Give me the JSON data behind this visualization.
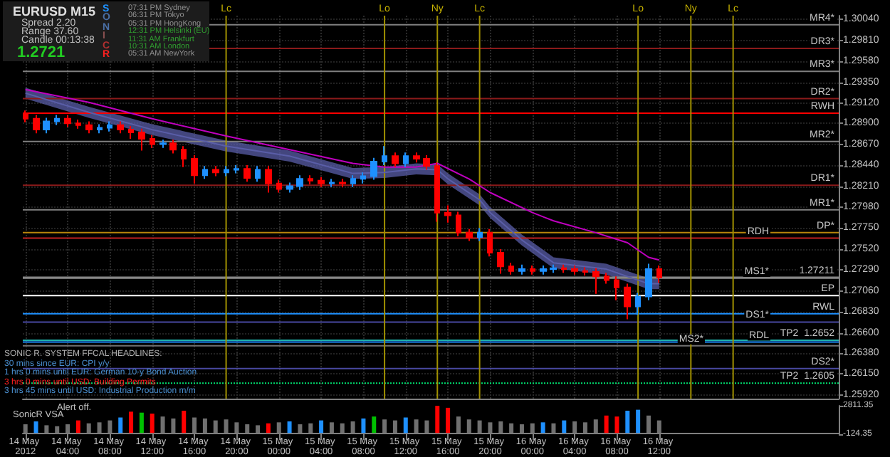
{
  "chart_data": [
    {
      "type": "candlestick",
      "title": "EURUSD  M15",
      "grid": true,
      "tick_labels": "y",
      "annotations": [
        "Spread  2.20",
        "Range  37.60",
        "Candle  00:13:38",
        "1.2721",
        "SONICR",
        "07:31 PM  Sydney",
        "06:31 PM  Tokyo",
        "05:31 PM  HongKong",
        "12:31 PM  Helsinki (EU)",
        "11:31 AM  Frankfurt",
        "10:31 AM  London",
        "05:31 AM  NewYork",
        "SONIC R. SYSTEM   FFCAL HEADLINES:",
        "30 mins since EUR: CPI y/y",
        "1 hrs 0 mins until EUR: German 10-y Bond Auction",
        "3 hrs 0 mins until USD: Building Permits",
        "3 hrs 45 mins until USD: Industrial Production m/m"
      ],
      "xlim": [
        "2012-05-13T23:45",
        "2012-05-17T05:00"
      ],
      "xticks": [
        {
          "value": "2012-05-14T00:00",
          "label": "14 May 2012"
        },
        {
          "value": "2012-05-14T04:00",
          "label": "14 May 04:00"
        },
        {
          "value": "2012-05-14T08:00",
          "label": "14 May 08:00"
        },
        {
          "value": "2012-05-14T12:00",
          "label": "14 May 12:00"
        },
        {
          "value": "2012-05-14T16:00",
          "label": "14 May 16:00"
        },
        {
          "value": "2012-05-14T20:00",
          "label": "14 May 20:00"
        },
        {
          "value": "2012-05-15T00:00",
          "label": "15 May 00:00"
        },
        {
          "value": "2012-05-15T04:00",
          "label": "15 May 04:00"
        },
        {
          "value": "2012-05-15T08:00",
          "label": "15 May 08:00"
        },
        {
          "value": "2012-05-15T12:00",
          "label": "15 May 12:00"
        },
        {
          "value": "2012-05-15T16:00",
          "label": "15 May 16:00"
        },
        {
          "value": "2012-05-15T20:00",
          "label": "15 May 20:00"
        },
        {
          "value": "2012-05-16T00:00",
          "label": "16 May 00:00"
        },
        {
          "value": "2012-05-16T04:00",
          "label": "16 May 04:00"
        },
        {
          "value": "2012-05-16T08:00",
          "label": "16 May 08:00"
        },
        {
          "value": "2012-05-16T12:00",
          "label": "16 May 12:00"
        }
      ],
      "ylim": [
        1.2588,
        1.3008
      ],
      "yticks": [
        {
          "value": 1.3004,
          "label": "1.30040"
        },
        {
          "value": 1.2981,
          "label": "1.29810"
        },
        {
          "value": 1.2958,
          "label": "1.29580"
        },
        {
          "value": 1.2935,
          "label": "1.29350"
        },
        {
          "value": 1.2912,
          "label": "1.29120"
        },
        {
          "value": 1.289,
          "label": "1.28900"
        },
        {
          "value": 1.2867,
          "label": "1.28670"
        },
        {
          "value": 1.2844,
          "label": "1.28440"
        },
        {
          "value": 1.2821,
          "label": "1.28210"
        },
        {
          "value": 1.2798,
          "label": "1.27980"
        },
        {
          "value": 1.2775,
          "label": "1.27750"
        },
        {
          "value": 1.2752,
          "label": "1.27520"
        },
        {
          "value": 1.2729,
          "label": "1.27290"
        },
        {
          "value": 1.2706,
          "label": "1.27060"
        },
        {
          "value": 1.2683,
          "label": "1.26830"
        },
        {
          "value": 1.266,
          "label": "1.26600"
        },
        {
          "value": 1.2638,
          "label": "1.26380"
        },
        {
          "value": 1.2615,
          "label": "1.26150"
        },
        {
          "value": 1.2592,
          "label": "1.25920"
        }
      ],
      "x": [
        "2012-05-14T00:00",
        "2012-05-14T01:00",
        "2012-05-14T02:00",
        "2012-05-14T03:00",
        "2012-05-14T04:00",
        "2012-05-14T05:00",
        "2012-05-14T06:00",
        "2012-05-14T07:00",
        "2012-05-14T08:00",
        "2012-05-14T09:00",
        "2012-05-14T10:00",
        "2012-05-14T11:00",
        "2012-05-14T12:00",
        "2012-05-14T13:00",
        "2012-05-14T14:00",
        "2012-05-14T15:00",
        "2012-05-14T16:00",
        "2012-05-14T17:00",
        "2012-05-14T18:00",
        "2012-05-14T19:00",
        "2012-05-14T20:00",
        "2012-05-14T21:00",
        "2012-05-14T22:00",
        "2012-05-14T23:00",
        "2012-05-15T00:00",
        "2012-05-15T01:00",
        "2012-05-15T02:00",
        "2012-05-15T03:00",
        "2012-05-15T04:00",
        "2012-05-15T05:00",
        "2012-05-15T06:00",
        "2012-05-15T07:00",
        "2012-05-15T08:00",
        "2012-05-15T09:00",
        "2012-05-15T10:00",
        "2012-05-15T11:00",
        "2012-05-15T12:00",
        "2012-05-15T13:00",
        "2012-05-15T14:00",
        "2012-05-15T15:00",
        "2012-05-15T16:00",
        "2012-05-15T17:00",
        "2012-05-15T18:00",
        "2012-05-15T19:00",
        "2012-05-15T20:00",
        "2012-05-15T21:00",
        "2012-05-15T22:00",
        "2012-05-15T23:00",
        "2012-05-16T00:00",
        "2012-05-16T01:00",
        "2012-05-16T02:00",
        "2012-05-16T03:00",
        "2012-05-16T04:00",
        "2012-05-16T05:00",
        "2012-05-16T06:00",
        "2012-05-16T07:00",
        "2012-05-16T08:00",
        "2012-05-16T09:00",
        "2012-05-16T10:00",
        "2012-05-16T11:00",
        "2012-05-16T12:00"
      ],
      "ohlc": [
        [
          1.29,
          1.2904,
          1.2891,
          1.2895
        ],
        [
          1.2895,
          1.2899,
          1.2879,
          1.2883
        ],
        [
          1.2883,
          1.2896,
          1.2879,
          1.2892
        ],
        [
          1.2892,
          1.2899,
          1.2888,
          1.2895
        ],
        [
          1.2895,
          1.2899,
          1.2886,
          1.289
        ],
        [
          1.289,
          1.2894,
          1.2884,
          1.2888
        ],
        [
          1.2888,
          1.2892,
          1.2879,
          1.2883
        ],
        [
          1.2883,
          1.2889,
          1.2879,
          1.2885
        ],
        [
          1.2885,
          1.2892,
          1.2881,
          1.2888
        ],
        [
          1.2888,
          1.2892,
          1.2879,
          1.2883
        ],
        [
          1.2883,
          1.2887,
          1.2873,
          1.288
        ],
        [
          1.288,
          1.2884,
          1.286,
          1.2873
        ],
        [
          1.2873,
          1.2877,
          1.2863,
          1.2867
        ],
        [
          1.2867,
          1.2872,
          1.2863,
          1.2868
        ],
        [
          1.2868,
          1.2872,
          1.2857,
          1.2861
        ],
        [
          1.2861,
          1.2865,
          1.2842,
          1.2851
        ],
        [
          1.2851,
          1.2855,
          1.2824,
          1.2833
        ],
        [
          1.2833,
          1.2843,
          1.2829,
          1.2839
        ],
        [
          1.2839,
          1.2843,
          1.2832,
          1.2836
        ],
        [
          1.2836,
          1.2843,
          1.2832,
          1.2839
        ],
        [
          1.2839,
          1.2844,
          1.2835,
          1.284
        ],
        [
          1.284,
          1.2844,
          1.2826,
          1.283
        ],
        [
          1.283,
          1.2843,
          1.2826,
          1.2839
        ],
        [
          1.2839,
          1.2843,
          1.2814,
          1.2824
        ],
        [
          1.2824,
          1.2828,
          1.2814,
          1.2818
        ],
        [
          1.2818,
          1.2825,
          1.2814,
          1.2821
        ],
        [
          1.2821,
          1.2833,
          1.2817,
          1.2829
        ],
        [
          1.2829,
          1.2833,
          1.2823,
          1.2827
        ],
        [
          1.2827,
          1.2831,
          1.282,
          1.2824
        ],
        [
          1.2824,
          1.2829,
          1.282,
          1.2825
        ],
        [
          1.2825,
          1.2829,
          1.282,
          1.2824
        ],
        [
          1.2824,
          1.2833,
          1.282,
          1.2829
        ],
        [
          1.2829,
          1.2836,
          1.2824,
          1.2832
        ],
        [
          1.2832,
          1.2852,
          1.2828,
          1.2848
        ],
        [
          1.2848,
          1.2865,
          1.2844,
          1.2854
        ],
        [
          1.2854,
          1.2858,
          1.2842,
          1.2846
        ],
        [
          1.2846,
          1.2858,
          1.2842,
          1.2854
        ],
        [
          1.2854,
          1.2858,
          1.2847,
          1.2851
        ],
        [
          1.2851,
          1.2855,
          1.2839,
          1.2843
        ],
        [
          1.2843,
          1.2847,
          1.2782,
          1.2792
        ],
        [
          1.2792,
          1.28,
          1.2781,
          1.2789
        ],
        [
          1.2789,
          1.2793,
          1.2766,
          1.277
        ],
        [
          1.277,
          1.2774,
          1.2761,
          1.2765
        ],
        [
          1.2765,
          1.2775,
          1.2761,
          1.277
        ],
        [
          1.277,
          1.2774,
          1.2744,
          1.2748
        ],
        [
          1.2748,
          1.2752,
          1.2725,
          1.2733
        ],
        [
          1.2733,
          1.2737,
          1.2724,
          1.2728
        ],
        [
          1.2728,
          1.2735,
          1.2724,
          1.273
        ],
        [
          1.273,
          1.2734,
          1.2724,
          1.2728
        ],
        [
          1.2728,
          1.2734,
          1.2724,
          1.273
        ],
        [
          1.273,
          1.2735,
          1.2726,
          1.2731
        ],
        [
          1.2731,
          1.2735,
          1.2726,
          1.273
        ],
        [
          1.273,
          1.2734,
          1.2724,
          1.2728
        ],
        [
          1.2728,
          1.2732,
          1.2723,
          1.2727
        ],
        [
          1.2727,
          1.2731,
          1.2703,
          1.2722
        ],
        [
          1.2722,
          1.2726,
          1.2714,
          1.2718
        ],
        [
          1.2718,
          1.2722,
          1.2696,
          1.271
        ],
        [
          1.271,
          1.2714,
          1.2675,
          1.2689
        ],
        [
          1.2689,
          1.2704,
          1.268,
          1.27
        ],
        [
          1.27,
          1.2736,
          1.2696,
          1.273
        ],
        [
          1.273,
          1.2734,
          1.2715,
          1.2721
        ]
      ],
      "colors": [
        "#ff0000",
        "#ff0000",
        "#1e90ff",
        "#1e90ff",
        "#ff0000",
        "#ff0000",
        "#ff0000",
        "#1e90ff",
        "#1e90ff",
        "#ff0000",
        "#ff0000",
        "#ff0000",
        "#ff0000",
        "#1e90ff",
        "#ff0000",
        "#ff0000",
        "#ff0000",
        "#1e90ff",
        "#ff0000",
        "#1e90ff",
        "#1e90ff",
        "#ff0000",
        "#1e90ff",
        "#ff0000",
        "#ff0000",
        "#1e90ff",
        "#1e90ff",
        "#ff0000",
        "#ff0000",
        "#1e90ff",
        "#ff0000",
        "#1e90ff",
        "#1e90ff",
        "#1e90ff",
        "#1e90ff",
        "#ff0000",
        "#1e90ff",
        "#ff0000",
        "#ff0000",
        "#ff0000",
        "#ff0000",
        "#ff0000",
        "#ff0000",
        "#1e90ff",
        "#ff0000",
        "#ff0000",
        "#ff0000",
        "#1e90ff",
        "#ff0000",
        "#1e90ff",
        "#1e90ff",
        "#ff0000",
        "#ff0000",
        "#ff0000",
        "#ff0000",
        "#ff0000",
        "#ff0000",
        "#ff0000",
        "#1e90ff",
        "#1e90ff",
        "#ff0000"
      ],
      "series": [
        {
          "type": "line",
          "color": "#c000c0",
          "x": [
            "2012-05-14T00:00",
            "2012-05-14T06:00",
            "2012-05-14T12:00",
            "2012-05-14T19:00",
            "2012-05-15T01:00",
            "2012-05-15T07:00",
            "2012-05-15T10:00",
            "2012-05-15T13:00",
            "2012-05-15T15:00",
            "2012-05-15T18:00",
            "2012-05-15T20:00",
            "2012-05-16T00:00",
            "2012-05-16T02:00",
            "2012-05-16T06:00",
            "2012-05-16T09:00",
            "2012-05-16T11:00",
            "2012-05-16T12:00"
          ],
          "values": [
            1.2927,
            1.2913,
            1.2895,
            1.2876,
            1.2861,
            1.2846,
            1.2842,
            1.2842,
            1.2846,
            1.2829,
            1.2814,
            1.2792,
            1.2783,
            1.277,
            1.2759,
            1.2743,
            1.274
          ]
        },
        {
          "type": "line",
          "color": "#5a5ea8",
          "x": [
            "2012-05-14T00:00",
            "2012-05-14T06:00",
            "2012-05-14T12:00",
            "2012-05-14T19:00",
            "2012-05-15T01:00",
            "2012-05-15T07:00",
            "2012-05-15T10:00",
            "2012-05-15T13:00",
            "2012-05-15T15:00",
            "2012-05-15T16:00",
            "2012-05-15T19:00",
            "2012-05-15T20:00",
            "2012-05-15T23:00",
            "2012-05-16T02:00",
            "2012-05-16T07:00",
            "2012-05-16T11:00",
            "2012-05-16T12:00"
          ],
          "values": [
            1.2923,
            1.2902,
            1.2883,
            1.2865,
            1.2854,
            1.2835,
            1.2836,
            1.284,
            1.2839,
            1.2829,
            1.2806,
            1.2792,
            1.2762,
            1.2737,
            1.273,
            1.2714,
            1.2714
          ],
          "lower": [
            1.2917,
            1.2896,
            1.2877,
            1.2859,
            1.2848,
            1.2829,
            1.283,
            1.2834,
            1.2833,
            1.2823,
            1.28,
            1.2786,
            1.2756,
            1.2731,
            1.2724,
            1.2708,
            1.2708
          ],
          "upper": [
            1.2929,
            1.2908,
            1.2889,
            1.2871,
            1.286,
            1.2841,
            1.2842,
            1.2846,
            1.2845,
            1.2835,
            1.2812,
            1.2798,
            1.2768,
            1.2743,
            1.2736,
            1.272,
            1.272
          ]
        }
      ],
      "ref_lines": [
        {
          "axis": "y",
          "value": 1.2998,
          "label": "MR4*",
          "color": "#808080"
        },
        {
          "axis": "y",
          "value": 1.2972,
          "label": "DR3*",
          "color": "#8b1a1a"
        },
        {
          "axis": "y",
          "value": 1.2947,
          "label": "MR3*",
          "color": "#808080"
        },
        {
          "axis": "y",
          "value": 1.2917,
          "label": "DR2*",
          "color": "#8b1a1a"
        },
        {
          "axis": "y",
          "value": 1.2901,
          "label": "RWH",
          "color": "#ff0000"
        },
        {
          "axis": "y",
          "value": 1.287,
          "label": "MR2*",
          "color": "#808080"
        },
        {
          "axis": "y",
          "value": 1.2822,
          "label": "DR1*",
          "color": "#8b1a1a"
        },
        {
          "axis": "y",
          "value": 1.2795,
          "label": "MR1*",
          "color": "#808080"
        },
        {
          "axis": "y",
          "value": 1.277,
          "label": "DP*",
          "color": "#b8860b"
        },
        {
          "axis": "y",
          "value": 1.2764,
          "label": "RDH",
          "color": "#c02020"
        },
        {
          "axis": "y",
          "value": 1.27211,
          "label": "1.27211",
          "color": "#909090"
        },
        {
          "axis": "y",
          "value": 1.272,
          "label": "MS1*",
          "color": "#707070"
        },
        {
          "axis": "y",
          "value": 1.2701,
          "label": "EP",
          "color": "#ffffff"
        },
        {
          "axis": "y",
          "value": 1.2681,
          "label": "RWL",
          "color": "#1e90ff"
        },
        {
          "axis": "y",
          "value": 1.2672,
          "label": "DS1*",
          "color": "#4848a0"
        },
        {
          "axis": "y",
          "value": 1.2652,
          "label": "TP2  1.2652",
          "color": "#20b2aa"
        },
        {
          "axis": "y",
          "value": 1.265,
          "label": "RDL",
          "color": "#1e90ff"
        },
        {
          "axis": "y",
          "value": 1.2646,
          "label": "MS2*",
          "color": "#707070"
        },
        {
          "axis": "y",
          "value": 1.2621,
          "label": "DS2*",
          "color": "#4848a0"
        },
        {
          "axis": "y",
          "value": 1.2605,
          "label": "TP2  1.2605",
          "color": "#00e070",
          "line_style": "dotted"
        },
        {
          "axis": "x",
          "value": "2012-05-14T19:00",
          "label": "Lc",
          "color": "#a09000"
        },
        {
          "axis": "x",
          "value": "2012-05-15T10:00",
          "label": "Lo",
          "color": "#a09000"
        },
        {
          "axis": "x",
          "value": "2012-05-15T15:00",
          "label": "Ny",
          "color": "#a09000"
        },
        {
          "axis": "x",
          "value": "2012-05-15T19:00",
          "label": "Lc",
          "color": "#a09000"
        },
        {
          "axis": "x",
          "value": "2012-05-16T10:00",
          "label": "Lo",
          "color": "#a09000"
        },
        {
          "axis": "x",
          "value": "2012-05-16T15:00",
          "label": "Ny",
          "color": "#a09000"
        },
        {
          "axis": "x",
          "value": "2012-05-16T19:00",
          "label": "Lc",
          "color": "#a09000"
        }
      ]
    },
    {
      "type": "bar",
      "title": "SonicR VSA",
      "annotations": [
        "Alert off."
      ],
      "xlim": [
        "2012-05-13T23:45",
        "2012-05-17T05:00"
      ],
      "xticks": [
        {
          "value": "2012-05-14T00:00",
          "label": "14 May 2012"
        },
        {
          "value": "2012-05-14T04:00",
          "label": "14 May 04:00"
        },
        {
          "value": "2012-05-14T08:00",
          "label": "14 May 08:00"
        },
        {
          "value": "2012-05-14T12:00",
          "label": "14 May 12:00"
        },
        {
          "value": "2012-05-14T16:00",
          "label": "14 May 16:00"
        },
        {
          "value": "2012-05-14T20:00",
          "label": "14 May 20:00"
        },
        {
          "value": "2012-05-15T00:00",
          "label": "15 May 00:00"
        },
        {
          "value": "2012-05-15T04:00",
          "label": "15 May 04:00"
        },
        {
          "value": "2012-05-15T08:00",
          "label": "15 May 08:00"
        },
        {
          "value": "2012-05-15T12:00",
          "label": "15 May 12:00"
        },
        {
          "value": "2012-05-15T16:00",
          "label": "15 May 16:00"
        },
        {
          "value": "2012-05-15T20:00",
          "label": "15 May 20:00"
        },
        {
          "value": "2012-05-16T00:00",
          "label": "16 May 00:00"
        },
        {
          "value": "2012-05-16T04:00",
          "label": "16 May 04:00"
        },
        {
          "value": "2012-05-16T08:00",
          "label": "16 May 08:00"
        },
        {
          "value": "2012-05-16T12:00",
          "label": "16 May 12:00"
        }
      ],
      "ylim": [
        -124.35,
        2811.35
      ],
      "yticks": [
        {
          "value": 2811.35,
          "label": "2811.35"
        },
        {
          "value": -124.35,
          "label": "-124.35"
        }
      ],
      "x": [
        "2012-05-14T00:00",
        "2012-05-14T01:00",
        "2012-05-14T02:00",
        "2012-05-14T03:00",
        "2012-05-14T04:00",
        "2012-05-14T05:00",
        "2012-05-14T06:00",
        "2012-05-14T07:00",
        "2012-05-14T08:00",
        "2012-05-14T09:00",
        "2012-05-14T10:00",
        "2012-05-14T11:00",
        "2012-05-14T12:00",
        "2012-05-14T13:00",
        "2012-05-14T14:00",
        "2012-05-14T15:00",
        "2012-05-14T16:00",
        "2012-05-14T17:00",
        "2012-05-14T18:00",
        "2012-05-14T19:00",
        "2012-05-14T20:00",
        "2012-05-14T21:00",
        "2012-05-14T22:00",
        "2012-05-14T23:00",
        "2012-05-15T00:00",
        "2012-05-15T01:00",
        "2012-05-15T02:00",
        "2012-05-15T03:00",
        "2012-05-15T04:00",
        "2012-05-15T05:00",
        "2012-05-15T06:00",
        "2012-05-15T07:00",
        "2012-05-15T08:00",
        "2012-05-15T09:00",
        "2012-05-15T10:00",
        "2012-05-15T11:00",
        "2012-05-15T12:00",
        "2012-05-15T13:00",
        "2012-05-15T14:00",
        "2012-05-15T15:00",
        "2012-05-15T16:00",
        "2012-05-15T17:00",
        "2012-05-15T18:00",
        "2012-05-15T19:00",
        "2012-05-15T20:00",
        "2012-05-15T21:00",
        "2012-05-15T22:00",
        "2012-05-15T23:00",
        "2012-05-16T00:00",
        "2012-05-16T01:00",
        "2012-05-16T02:00",
        "2012-05-16T03:00",
        "2012-05-16T04:00",
        "2012-05-16T05:00",
        "2012-05-16T06:00",
        "2012-05-16T07:00",
        "2012-05-16T08:00",
        "2012-05-16T09:00",
        "2012-05-16T10:00",
        "2012-05-16T11:00",
        "2012-05-16T12:00"
      ],
      "values": [
        900,
        1200,
        800,
        700,
        900,
        1300,
        1000,
        1100,
        1300,
        1600,
        2200,
        2100,
        2000,
        1700,
        1500,
        2300,
        1600,
        1500,
        1300,
        1400,
        1100,
        900,
        800,
        1000,
        1100,
        1200,
        900,
        1000,
        1300,
        1100,
        1000,
        1200,
        1500,
        1700,
        1400,
        1300,
        1600,
        1400,
        1300,
        2800,
        2600,
        1700,
        1400,
        1300,
        1100,
        1200,
        1000,
        900,
        1000,
        1100,
        1000,
        1300,
        1200,
        1100,
        1400,
        1800,
        1700,
        2300,
        2400,
        1800,
        1300
      ],
      "colors": [
        "#707070",
        "#1e90ff",
        "#707070",
        "#707070",
        "#707070",
        "#ff0000",
        "#707070",
        "#707070",
        "#707070",
        "#1e90ff",
        "#ff0000",
        "#00c000",
        "#ff0000",
        "#707070",
        "#707070",
        "#ff0000",
        "#707070",
        "#707070",
        "#707070",
        "#707070",
        "#707070",
        "#707070",
        "#707070",
        "#ff0000",
        "#707070",
        "#1e90ff",
        "#707070",
        "#707070",
        "#1e90ff",
        "#707070",
        "#707070",
        "#707070",
        "#1e90ff",
        "#00c000",
        "#707070",
        "#707070",
        "#1e90ff",
        "#707070",
        "#707070",
        "#ff0000",
        "#ff0000",
        "#707070",
        "#707070",
        "#707070",
        "#707070",
        "#707070",
        "#707070",
        "#707070",
        "#707070",
        "#1e90ff",
        "#707070",
        "#1e90ff",
        "#707070",
        "#707070",
        "#707070",
        "#ff0000",
        "#ff0000",
        "#1e90ff",
        "#1e90ff",
        "#707070",
        "#707070"
      ]
    }
  ]
}
